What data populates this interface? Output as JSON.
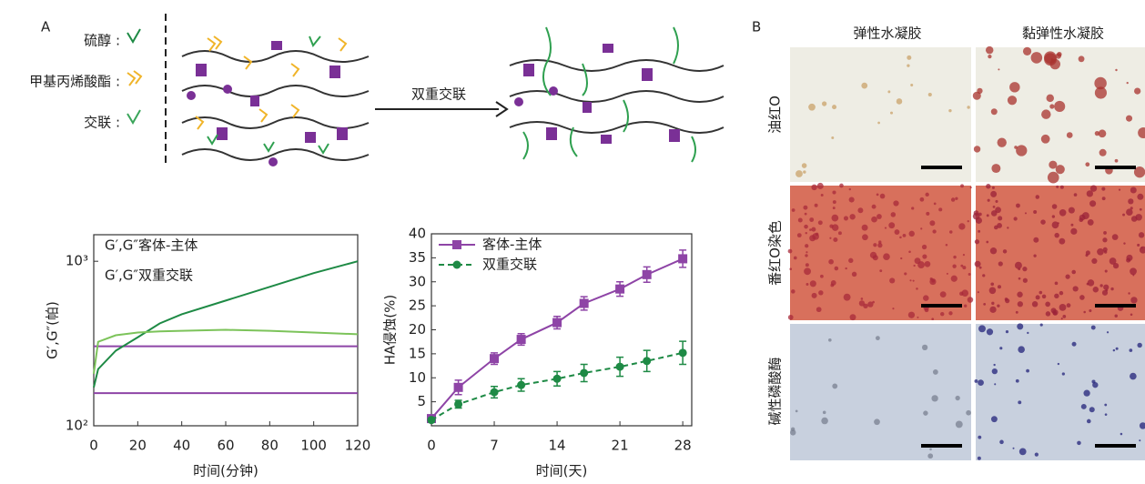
{
  "panel_a": {
    "label": "A",
    "legend": [
      "硫醇 :",
      "甲基丙烯酸酯 :",
      "交联 :"
    ],
    "arrow_label": "双重交联"
  },
  "chart_data": [
    {
      "type": "line",
      "log_y": true,
      "x": [
        0,
        2,
        10,
        20,
        30,
        40,
        60,
        80,
        100,
        120
      ],
      "series": [
        {
          "name": "G′,G″客体-主体",
          "colors": [
            "#8e44a6",
            "#8e44a6"
          ],
          "storage": [
            304,
            304,
            304,
            304,
            304,
            304,
            304,
            304,
            304,
            304
          ],
          "loss": [
            158,
            158,
            158,
            158,
            158,
            158,
            158,
            158,
            158,
            158
          ]
        },
        {
          "name": "G′,G″双重交联",
          "colors": [
            "#1e8a45",
            "#7cc35a"
          ],
          "storage": [
            171,
            221,
            286,
            345,
            419,
            476,
            577,
            699,
            847,
            1000
          ],
          "loss": [
            207,
            324,
            355,
            369,
            375,
            378,
            383,
            378,
            369,
            360
          ]
        }
      ],
      "xlim": [
        0,
        120
      ],
      "xticks": [
        0,
        20,
        40,
        60,
        80,
        100,
        120
      ],
      "ylim": [
        100,
        1450
      ],
      "yticks": [
        {
          "value": 100,
          "label": "10²"
        },
        {
          "value": 1000,
          "label": "10³"
        }
      ],
      "xlabel": "时间(分钟)",
      "ylabel": "G′,G″(帕)"
    },
    {
      "type": "line",
      "x": [
        0,
        3,
        7,
        10,
        14,
        17,
        21,
        24,
        28
      ],
      "series": [
        {
          "name": "客体-主体",
          "color": "#8e44a6",
          "marker": "square",
          "line_style": "solid",
          "values": [
            1.5,
            8,
            14,
            18,
            21.5,
            25.5,
            28.5,
            31.5,
            34.8
          ],
          "errors": [
            0.5,
            1.5,
            1.2,
            1.2,
            1.3,
            1.4,
            1.5,
            1.6,
            1.8
          ]
        },
        {
          "name": "双重交联",
          "color": "#1e8a45",
          "marker": "circle",
          "line_style": "dashed",
          "values": [
            1.2,
            4.5,
            7,
            8.5,
            9.8,
            11,
            12.3,
            13.5,
            15.2
          ],
          "errors": [
            0.4,
            0.8,
            1.2,
            1.3,
            1.5,
            1.8,
            2,
            2.2,
            2.4
          ]
        }
      ],
      "xlim": [
        0,
        29
      ],
      "xticks": [
        0,
        7,
        14,
        21,
        28
      ],
      "ylim": [
        0,
        40
      ],
      "yticks": [
        5,
        10,
        15,
        20,
        25,
        30,
        35,
        40
      ],
      "xlabel": "时间(天)",
      "ylabel": "HA侵蚀(%)"
    }
  ],
  "panel_b": {
    "label": "B",
    "columns": [
      "弹性水凝胶",
      "黏弹性水凝胶"
    ],
    "rows": [
      "油红O",
      "番红O染色",
      "碱性磷酸酶"
    ]
  }
}
